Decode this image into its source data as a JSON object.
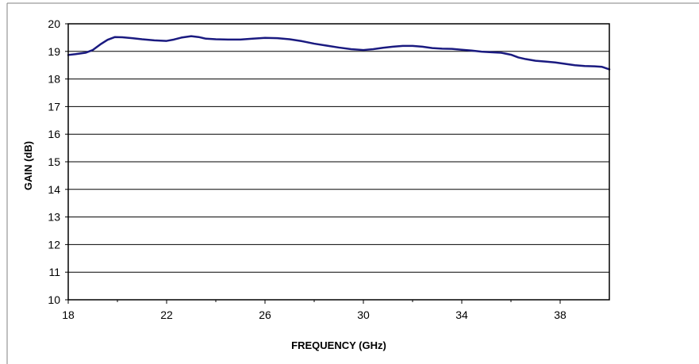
{
  "chart_data": {
    "type": "line",
    "title": "",
    "xlabel": "FREQUENCY (GHz)",
    "ylabel": "GAIN (dB)",
    "xlim": [
      18,
      40
    ],
    "ylim": [
      10,
      20
    ],
    "x_ticks": [
      18,
      22,
      26,
      30,
      34,
      38
    ],
    "y_ticks": [
      10,
      11,
      12,
      13,
      14,
      15,
      16,
      17,
      18,
      19,
      20
    ],
    "grid": "horizontal",
    "legend": "none",
    "series": [
      {
        "color": "#1a1a80",
        "x": [
          18.0,
          18.3,
          18.7,
          19.0,
          19.3,
          19.6,
          19.9,
          20.2,
          20.6,
          21.0,
          21.5,
          22.0,
          22.3,
          22.6,
          23.0,
          23.3,
          23.6,
          24.0,
          24.5,
          25.0,
          25.5,
          26.0,
          26.5,
          27.0,
          27.5,
          28.0,
          28.5,
          29.0,
          29.5,
          30.0,
          30.4,
          30.8,
          31.2,
          31.6,
          32.0,
          32.4,
          32.8,
          33.2,
          33.6,
          34.0,
          34.4,
          34.8,
          35.2,
          35.6,
          36.0,
          36.3,
          36.6,
          37.0,
          37.4,
          37.8,
          38.2,
          38.6,
          39.0,
          39.4,
          39.7,
          40.0
        ],
        "values": [
          18.87,
          18.9,
          18.95,
          19.05,
          19.25,
          19.42,
          19.52,
          19.51,
          19.48,
          19.44,
          19.4,
          19.38,
          19.43,
          19.5,
          19.55,
          19.52,
          19.46,
          19.44,
          19.43,
          19.43,
          19.46,
          19.49,
          19.48,
          19.44,
          19.37,
          19.28,
          19.21,
          19.14,
          19.08,
          19.05,
          19.08,
          19.13,
          19.17,
          19.2,
          19.2,
          19.17,
          19.12,
          19.1,
          19.09,
          19.06,
          19.03,
          18.99,
          18.97,
          18.95,
          18.88,
          18.78,
          18.72,
          18.66,
          18.63,
          18.6,
          18.55,
          18.5,
          18.47,
          18.46,
          18.44,
          18.35
        ]
      }
    ]
  }
}
